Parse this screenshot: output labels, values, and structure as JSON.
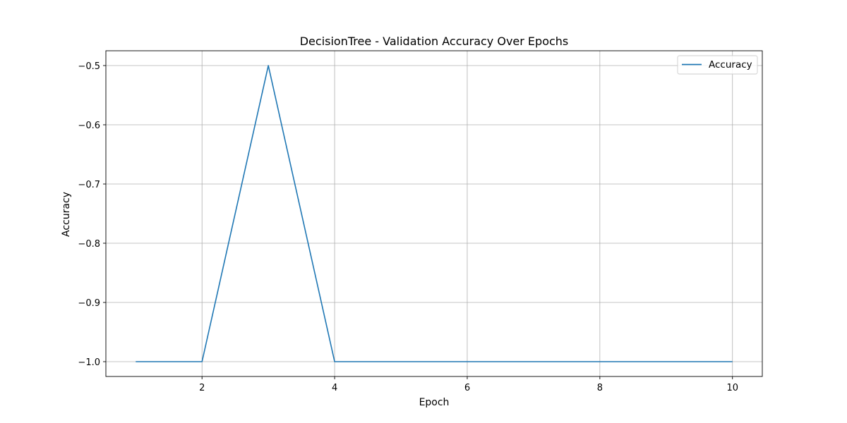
{
  "chart_data": {
    "type": "line",
    "title": "DecisionTree - Validation Accuracy Over Epochs",
    "xlabel": "Epoch",
    "ylabel": "Accuracy",
    "x": [
      1,
      2,
      3,
      4,
      5,
      6,
      7,
      8,
      9,
      10
    ],
    "series": [
      {
        "name": "Accuracy",
        "color": "#1f77b4",
        "values": [
          -1.0,
          -1.0,
          -0.5,
          -1.0,
          -1.0,
          -1.0,
          -1.0,
          -1.0,
          -1.0,
          -1.0
        ]
      }
    ],
    "xlim": [
      0.55,
      10.45
    ],
    "ylim": [
      -1.025,
      -0.475
    ],
    "xticks": [
      2,
      4,
      6,
      8,
      10
    ],
    "xtick_labels": [
      "2",
      "4",
      "6",
      "8",
      "10"
    ],
    "yticks": [
      -1.0,
      -0.9,
      -0.8,
      -0.7,
      -0.6,
      -0.5
    ],
    "ytick_labels": [
      "−1.0",
      "−0.9",
      "−0.8",
      "−0.7",
      "−0.6",
      "−0.5"
    ],
    "grid": true,
    "legend_position": "top-right"
  }
}
